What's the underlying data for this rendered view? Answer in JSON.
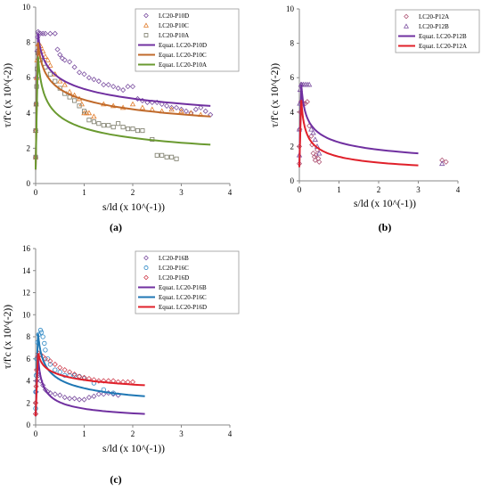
{
  "chart_data": [
    {
      "type": "scatter",
      "panel_label": "(a)",
      "xlabel": "s/ld (x 10^(-1))",
      "ylabel": "τ/f'c (x 10^(-2))",
      "xlim": [
        0,
        4
      ],
      "ylim": [
        0,
        10
      ],
      "xticks": [
        "0",
        "1",
        "2",
        "3",
        "4"
      ],
      "yticks": [
        "0",
        "2",
        "4",
        "6",
        "8",
        "10"
      ],
      "legend_position": "top-right",
      "series": [
        {
          "name": "LC20-P10D",
          "kind": "points",
          "marker": "diamond",
          "color": "#7b4fa0",
          "x": [
            0.0,
            0.0,
            0.01,
            0.02,
            0.03,
            0.04,
            0.05,
            0.06,
            0.1,
            0.15,
            0.2,
            0.3,
            0.4,
            0.45,
            0.5,
            0.55,
            0.6,
            0.7,
            0.8,
            0.9,
            1.0,
            1.1,
            1.2,
            1.3,
            1.4,
            1.5,
            1.6,
            1.7,
            1.8,
            1.9,
            2.0,
            2.1,
            2.2,
            2.3,
            2.4,
            2.5,
            2.6,
            2.7,
            2.8,
            2.9,
            3.0,
            3.1,
            3.2,
            3.3,
            3.4,
            3.5,
            3.6
          ],
          "y": [
            1.5,
            3.0,
            4.5,
            6.0,
            7.5,
            8.3,
            8.6,
            8.5,
            8.5,
            8.5,
            8.5,
            8.5,
            8.5,
            7.6,
            7.3,
            7.1,
            7.0,
            6.9,
            6.6,
            6.3,
            6.2,
            6.0,
            5.9,
            5.8,
            5.6,
            5.6,
            5.5,
            5.4,
            5.3,
            5.5,
            5.5,
            4.8,
            4.7,
            4.6,
            4.6,
            4.6,
            4.5,
            4.4,
            4.3,
            4.3,
            4.2,
            4.1,
            4.0,
            4.2,
            4.3,
            4.1,
            3.9
          ]
        },
        {
          "name": "LC20-P10C",
          "kind": "points",
          "marker": "triangle",
          "color": "#e07b2a",
          "x": [
            0.0,
            0.0,
            0.01,
            0.02,
            0.03,
            0.05,
            0.1,
            0.15,
            0.2,
            0.25,
            0.3,
            0.4,
            0.5,
            0.6,
            0.7,
            0.8,
            0.9,
            0.95,
            1.0,
            1.05,
            1.1,
            1.2,
            1.4,
            1.6,
            1.8,
            2.0,
            2.2,
            2.4,
            2.6,
            2.8,
            3.0,
            3.2,
            3.4
          ],
          "y": [
            1.5,
            3.0,
            4.5,
            6.0,
            7.0,
            7.9,
            7.8,
            7.5,
            7.2,
            7.0,
            6.7,
            6.2,
            5.8,
            5.6,
            5.2,
            5.0,
            4.8,
            4.5,
            4.0,
            4.0,
            4.0,
            3.8,
            4.5,
            4.4,
            4.3,
            4.5,
            4.3,
            4.2,
            4.1,
            4.2,
            4.1,
            4.0,
            3.9
          ]
        },
        {
          "name": "LC20-P10A",
          "kind": "points",
          "marker": "square",
          "color": "#7a7a68",
          "x": [
            0.0,
            0.0,
            0.01,
            0.02,
            0.03,
            0.05,
            0.1,
            0.2,
            0.3,
            0.4,
            0.5,
            0.6,
            0.7,
            0.8,
            0.9,
            1.0,
            1.1,
            1.2,
            1.3,
            1.4,
            1.5,
            1.6,
            1.7,
            1.8,
            1.9,
            2.0,
            2.1,
            2.2,
            2.4,
            2.5,
            2.6,
            2.7,
            2.8,
            2.9
          ],
          "y": [
            1.5,
            3.0,
            4.5,
            5.5,
            6.5,
            7.4,
            7.0,
            6.6,
            6.2,
            5.8,
            5.4,
            5.1,
            4.9,
            4.7,
            4.4,
            4.1,
            3.6,
            3.5,
            3.4,
            3.3,
            3.3,
            3.2,
            3.4,
            3.2,
            3.1,
            3.1,
            3.0,
            3.0,
            2.5,
            1.6,
            1.6,
            1.5,
            1.5,
            1.4
          ]
        },
        {
          "name": "Equat. LC20-P10D",
          "kind": "curve",
          "color": "#7030a0",
          "peak": [
            0.05,
            8.5
          ],
          "end": [
            3.6,
            4.4
          ]
        },
        {
          "name": "Equat. LC20-P10C",
          "kind": "curve",
          "color": "#c06a2b",
          "peak": [
            0.05,
            8.0
          ],
          "end": [
            3.6,
            3.8
          ]
        },
        {
          "name": "Equat. LC20-P10A",
          "kind": "curve",
          "color": "#6a9a30",
          "peak": [
            0.05,
            7.2
          ],
          "end": [
            3.6,
            2.2
          ]
        }
      ]
    },
    {
      "type": "scatter",
      "panel_label": "(b)",
      "xlabel": "s/ld (x 10^(-1))",
      "ylabel": "τ/f'c (x 10^(-2))",
      "xlim": [
        0,
        4
      ],
      "ylim": [
        0,
        10
      ],
      "xticks": [
        "0",
        "1",
        "2",
        "3",
        "4"
      ],
      "yticks": [
        "0",
        "2",
        "4",
        "6",
        "8",
        "10"
      ],
      "legend_position": "top-right",
      "series": [
        {
          "name": "LC20-P12A",
          "kind": "points",
          "marker": "diamond",
          "color": "#b05878",
          "x": [
            0.0,
            0.0,
            0.01,
            0.02,
            0.04,
            0.06,
            0.1,
            0.15,
            0.2,
            0.25,
            0.3,
            0.32,
            0.35,
            0.38,
            0.4,
            0.42,
            0.45,
            0.48,
            0.5,
            3.6,
            3.7
          ],
          "y": [
            1.0,
            2.0,
            3.0,
            4.0,
            4.6,
            4.6,
            4.5,
            4.5,
            4.6,
            3.2,
            2.6,
            2.1,
            1.6,
            1.4,
            1.2,
            1.5,
            1.8,
            1.3,
            1.1,
            1.2,
            1.1
          ]
        },
        {
          "name": "LC20-P12B",
          "kind": "points",
          "marker": "triangle",
          "color": "#7b4fa0",
          "x": [
            0.0,
            0.0,
            0.01,
            0.02,
            0.04,
            0.06,
            0.1,
            0.15,
            0.2,
            0.25,
            0.3,
            0.35,
            0.4,
            0.45,
            0.5,
            3.6
          ],
          "y": [
            1.5,
            3.0,
            4.5,
            5.3,
            5.6,
            5.6,
            5.6,
            5.6,
            5.6,
            5.6,
            3.0,
            2.8,
            2.4,
            2.0,
            1.6,
            1.0
          ]
        },
        {
          "name": "Equat. LC20-P12B",
          "kind": "curve",
          "color": "#7030a0",
          "peak": [
            0.05,
            5.6
          ],
          "end": [
            3.0,
            1.6
          ]
        },
        {
          "name": "Equat. LC20-P12A",
          "kind": "curve",
          "color": "#e0202a",
          "peak": [
            0.05,
            4.7
          ],
          "end": [
            3.0,
            0.9
          ]
        }
      ]
    },
    {
      "type": "scatter",
      "panel_label": "(c)",
      "xlabel": "s/ld (x 10^(-1))",
      "ylabel": "τ/f'c (x 10^(-2))",
      "xlim": [
        0,
        4
      ],
      "ylim": [
        0,
        16
      ],
      "xticks": [
        "0",
        "1",
        "2",
        "3",
        "4"
      ],
      "yticks": [
        "0",
        "2",
        "4",
        "6",
        "8",
        "10",
        "12",
        "14",
        "16"
      ],
      "legend_position": "top-right",
      "series": [
        {
          "name": "LC20-P16B",
          "kind": "points",
          "marker": "diamond",
          "color": "#7b4fa0",
          "x": [
            0.0,
            0.0,
            0.01,
            0.02,
            0.04,
            0.06,
            0.1,
            0.15,
            0.2,
            0.25,
            0.3,
            0.4,
            0.5,
            0.6,
            0.7,
            0.8,
            0.9,
            1.0,
            1.1,
            1.2,
            1.3,
            1.4,
            1.5,
            1.6,
            1.7
          ],
          "y": [
            1.0,
            2.0,
            3.0,
            4.0,
            4.6,
            4.5,
            4.0,
            3.6,
            3.2,
            3.0,
            2.9,
            2.8,
            2.7,
            2.5,
            2.4,
            2.4,
            2.3,
            2.3,
            2.5,
            2.6,
            2.8,
            2.8,
            2.9,
            2.8,
            2.7
          ]
        },
        {
          "name": "LC20-P16C",
          "kind": "points",
          "marker": "circle",
          "color": "#2a86c4",
          "x": [
            0.0,
            0.0,
            0.01,
            0.02,
            0.04,
            0.06,
            0.1,
            0.12,
            0.15,
            0.18,
            0.2,
            0.25,
            0.3,
            0.4,
            0.5,
            0.6,
            0.7,
            0.8,
            0.9,
            1.0,
            1.2,
            1.4,
            1.6
          ],
          "y": [
            1.5,
            3.0,
            4.5,
            6.0,
            7.5,
            8.2,
            8.6,
            8.4,
            8.0,
            7.4,
            6.8,
            6.0,
            5.5,
            5.0,
            4.8,
            4.5,
            4.5,
            4.5,
            4.4,
            4.2,
            3.8,
            3.2,
            2.9
          ]
        },
        {
          "name": "LC20-P16D",
          "kind": "points",
          "marker": "diamond",
          "color": "#d04050",
          "x": [
            0.0,
            0.0,
            0.01,
            0.02,
            0.04,
            0.06,
            0.1,
            0.15,
            0.2,
            0.3,
            0.4,
            0.5,
            0.6,
            0.7,
            0.8,
            0.9,
            1.0,
            1.1,
            1.2,
            1.3,
            1.4,
            1.5,
            1.6,
            1.7,
            1.8,
            1.9,
            2.0
          ],
          "y": [
            1.0,
            2.0,
            3.5,
            5.0,
            6.2,
            6.5,
            6.4,
            6.2,
            6.0,
            5.8,
            5.5,
            5.2,
            5.0,
            4.8,
            4.6,
            4.4,
            4.3,
            4.2,
            4.1,
            4.0,
            4.0,
            4.0,
            4.0,
            3.9,
            3.9,
            3.9,
            3.9
          ]
        },
        {
          "name": "Equat. LC20-P16B",
          "kind": "curve",
          "color": "#7030a0",
          "peak": [
            0.05,
            6.2
          ],
          "end": [
            2.25,
            1.0
          ]
        },
        {
          "name": "Equat. LC20-P16C",
          "kind": "curve",
          "color": "#1f77b4",
          "peak": [
            0.05,
            8.3
          ],
          "end": [
            2.25,
            2.6
          ]
        },
        {
          "name": "Equat. LC20-P16D",
          "kind": "curve",
          "color": "#e0202a",
          "peak": [
            0.05,
            6.5
          ],
          "end": [
            2.25,
            3.6
          ]
        }
      ]
    }
  ]
}
